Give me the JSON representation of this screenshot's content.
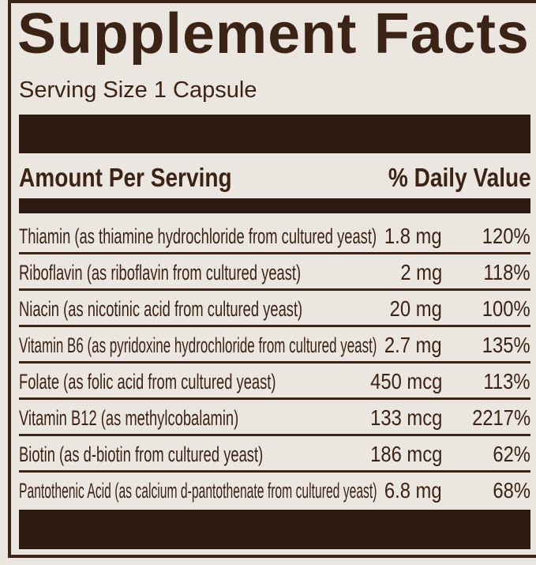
{
  "title": "Supplement Facts",
  "serving_size": "Serving Size 1 Capsule",
  "header": {
    "amount": "Amount Per Serving",
    "daily_value": "% Daily Value"
  },
  "rows": [
    {
      "name": "Thiamin (as thiamine hydrochloride from cultured yeast)",
      "amount": "1.8 mg",
      "dv": "120%"
    },
    {
      "name": "Riboflavin (as riboflavin from cultured yeast)",
      "amount": "2 mg",
      "dv": "118%"
    },
    {
      "name": "Niacin (as nicotinic acid from cultured yeast)",
      "amount": "20 mg",
      "dv": "100%"
    },
    {
      "name": "Vitamin B6 (as pyridoxine hydrochloride from cultured yeast)",
      "amount": "2.7 mg",
      "dv": "135%"
    },
    {
      "name": "Folate (as folic acid from cultured yeast)",
      "amount": "450 mcg",
      "dv": "113%"
    },
    {
      "name": "Vitamin B12 (as methylcobalamin)",
      "amount": "133 mcg",
      "dv": "2217%"
    },
    {
      "name": "Biotin (as d-biotin from cultured yeast)",
      "amount": "186 mcg",
      "dv": "62%"
    },
    {
      "name": "Pantothenic Acid (as calcium d-pantothenate from cultured yeast)",
      "amount": "6.8 mg",
      "dv": "68%"
    }
  ],
  "colors": {
    "ink": "#3b2316",
    "background": "#ece6e1"
  }
}
